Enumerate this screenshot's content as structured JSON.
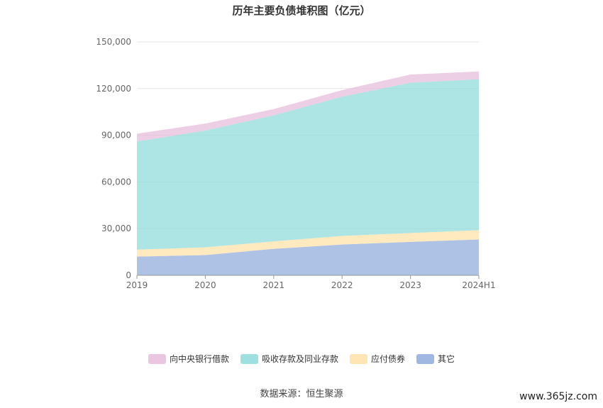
{
  "chart_data": {
    "type": "area",
    "stacked": true,
    "title": "历年主要负债堆积图（亿元）",
    "categories": [
      "2019",
      "2020",
      "2021",
      "2022",
      "2023",
      "2024H1"
    ],
    "ylim": [
      0,
      150000
    ],
    "yticks": [
      "0",
      "30,000",
      "60,000",
      "90,000",
      "120,000",
      "150,000"
    ],
    "grid": true,
    "legend_position": "bottom",
    "series": [
      {
        "name": "其它",
        "color": "#8FAADC",
        "values": [
          12000,
          13000,
          17000,
          19800,
          21500,
          23000
        ]
      },
      {
        "name": "应付债券",
        "color": "#FFE0A6",
        "values": [
          4500,
          5000,
          4800,
          5500,
          5700,
          6000
        ]
      },
      {
        "name": "吸收存款及同业存款",
        "color": "#8DD9DA",
        "values": [
          69500,
          75000,
          81000,
          89500,
          96500,
          97000
        ]
      },
      {
        "name": "向中央银行借款",
        "color": "#E6BCDB",
        "values": [
          5000,
          4500,
          4000,
          4200,
          5300,
          5000
        ]
      }
    ],
    "legend_order": [
      "向中央银行借款",
      "吸收存款及同业存款",
      "应付债券",
      "其它"
    ]
  },
  "footer": {
    "source": "数据来源：恒生聚源",
    "watermark": "www.365jz.com"
  }
}
